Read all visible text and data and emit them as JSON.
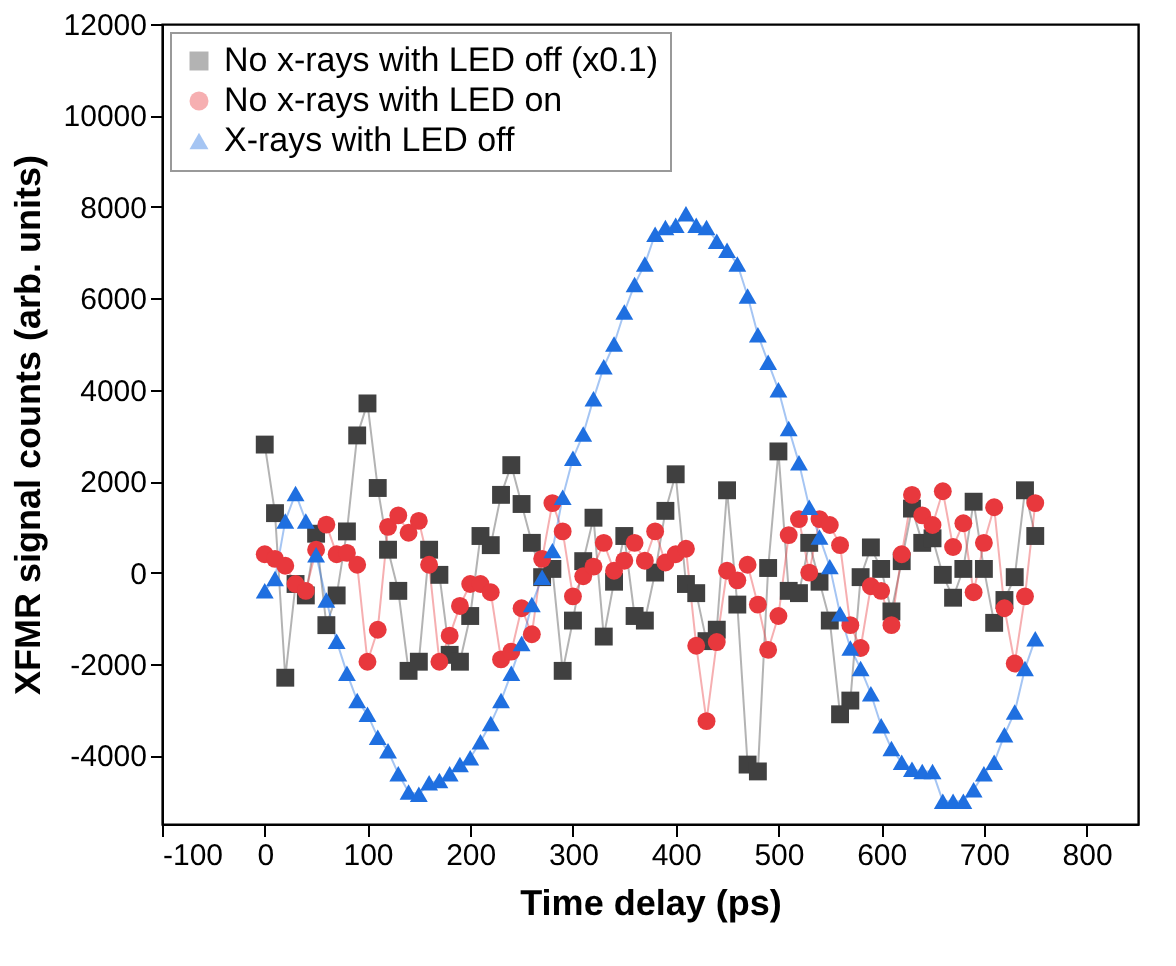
{
  "chart_data": {
    "type": "line",
    "xlabel": "Time delay (ps)",
    "ylabel": "XFMR signal counts (arb. units)",
    "x": [
      0,
      10,
      20,
      30,
      40,
      50,
      60,
      70,
      80,
      90,
      100,
      110,
      120,
      130,
      140,
      150,
      160,
      170,
      180,
      190,
      200,
      210,
      220,
      230,
      240,
      250,
      260,
      270,
      280,
      290,
      300,
      310,
      320,
      330,
      340,
      350,
      360,
      370,
      380,
      390,
      400,
      410,
      420,
      430,
      440,
      450,
      460,
      470,
      480,
      490,
      500,
      510,
      520,
      530,
      540,
      550,
      560,
      570,
      580,
      590,
      600,
      610,
      620,
      630,
      640,
      650,
      660,
      670,
      680,
      690,
      700,
      710,
      720,
      730,
      740,
      750
    ],
    "xlim": [
      -100,
      850
    ],
    "xticks": [
      -100,
      0,
      100,
      200,
      300,
      400,
      500,
      600,
      700,
      800
    ],
    "ylim": [
      -5500,
      12000
    ],
    "yticks": [
      -4000,
      -2000,
      0,
      2000,
      4000,
      6000,
      8000,
      10000,
      12000
    ],
    "grid": false,
    "legend": "top left",
    "line_style": "solid",
    "series": [
      {
        "name": "No x-rays with LED off (x0.1)",
        "color": "#404040",
        "marker": "square",
        "values": [
          2800,
          1300,
          -2300,
          -250,
          -500,
          850,
          -1150,
          -500,
          900,
          3000,
          3700,
          1850,
          500,
          -400,
          -2150,
          -1950,
          500,
          -50,
          -1800,
          -1950,
          -950,
          800,
          600,
          1700,
          2350,
          1500,
          650,
          -100,
          80,
          -2150,
          -1050,
          250,
          1200,
          -1400,
          -200,
          800,
          -950,
          -1050,
          0,
          1350,
          2150,
          -250,
          -450,
          -1500,
          -1250,
          1800,
          -700,
          -4200,
          -4350,
          100,
          2650,
          -400,
          -450,
          650,
          -200,
          -1050,
          -3100,
          -2800,
          -100,
          550,
          80,
          -850,
          250,
          1400,
          650,
          750,
          -50,
          -550,
          80,
          1550,
          80,
          -1100,
          -600,
          -100,
          1800,
          800
        ]
      },
      {
        "name": "No x-rays with LED on",
        "color": "#e8383d",
        "marker": "circle",
        "values": [
          400,
          300,
          150,
          -250,
          -400,
          500,
          1050,
          400,
          430,
          170,
          -1950,
          -1250,
          1000,
          1250,
          870,
          1130,
          170,
          -1950,
          -1380,
          -730,
          -250,
          -250,
          -430,
          -1900,
          -1730,
          -780,
          -1350,
          300,
          1520,
          900,
          -520,
          -80,
          130,
          650,
          40,
          260,
          650,
          260,
          900,
          220,
          400,
          520,
          -1600,
          -3250,
          -1520,
          40,
          -170,
          170,
          -700,
          -1690,
          -950,
          820,
          1170,
          0,
          1170,
          1040,
          600,
          -1150,
          -1650,
          -300,
          -400,
          -1150,
          400,
          1700,
          1250,
          1040,
          1780,
          560,
          1080,
          -430,
          650,
          1430,
          -780,
          -1990,
          -520,
          1520
        ]
      },
      {
        "name": "X-rays with LED off",
        "color": "#1f6fe0",
        "marker": "triangle",
        "values": [
          -400,
          -130,
          1130,
          1730,
          1130,
          390,
          -600,
          -1500,
          -2200,
          -2800,
          -3100,
          -3600,
          -3900,
          -4400,
          -4800,
          -4850,
          -4600,
          -4550,
          -4400,
          -4200,
          -4050,
          -3700,
          -3300,
          -2800,
          -2200,
          -1550,
          -700,
          -100,
          480,
          1650,
          2500,
          3030,
          3800,
          4500,
          5000,
          5700,
          6300,
          6750,
          7400,
          7550,
          7600,
          7850,
          7600,
          7550,
          7250,
          7050,
          6750,
          6050,
          5200,
          4600,
          4000,
          3150,
          2400,
          1430,
          780,
          130,
          -900,
          -1650,
          -2100,
          -2650,
          -3350,
          -3850,
          -4150,
          -4300,
          -4350,
          -4350,
          -5000,
          -5000,
          -5000,
          -4750,
          -4400,
          -4150,
          -3550,
          -3050,
          -2100,
          -1450
        ]
      }
    ]
  }
}
